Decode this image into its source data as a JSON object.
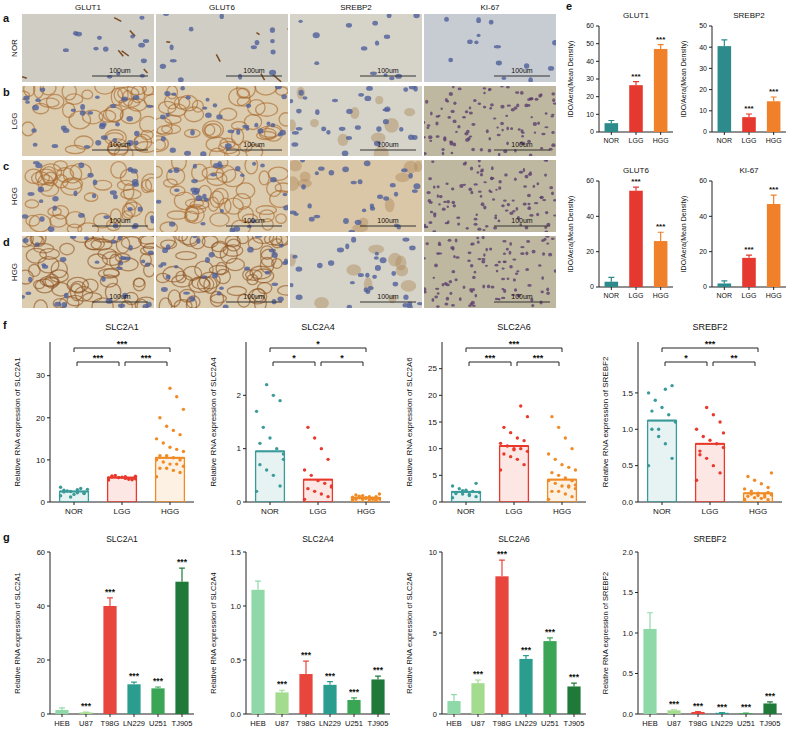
{
  "panel_labels": [
    "a",
    "b",
    "c",
    "d",
    "e",
    "f",
    "g"
  ],
  "image_grid": {
    "columns": [
      "GLUT1",
      "GLUT6",
      "SREBP2",
      "KI-67"
    ],
    "rows": [
      "NOR",
      "LGG",
      "HGG",
      "HGG"
    ],
    "scale_bar": "100um"
  },
  "chart_data": [
    {
      "type": "bar",
      "title": "GLUT1",
      "y_label": "IDO/Aera(Mean Density)",
      "categories": [
        "NOR",
        "LGG",
        "HGG"
      ],
      "values": [
        5,
        26.5,
        47
      ],
      "errors": [
        1.5,
        2,
        2.5
      ],
      "colors": [
        "#2e8b8b",
        "#e5392f",
        "#f0812a"
      ],
      "significance": [
        null,
        "***",
        "***"
      ],
      "ylim": [
        0,
        60
      ],
      "yticks": [
        0,
        10,
        20,
        30,
        40,
        50,
        60
      ]
    },
    {
      "type": "bar",
      "title": "SREBP2",
      "y_label": "IDO/Aera(Mean Density)",
      "categories": [
        "NOR",
        "LGG",
        "HGG"
      ],
      "values": [
        40.5,
        7,
        14.5
      ],
      "errors": [
        3,
        1.5,
        2
      ],
      "colors": [
        "#2e8b8b",
        "#e5392f",
        "#f0812a"
      ],
      "significance": [
        null,
        "***",
        "***"
      ],
      "ylim": [
        0,
        50
      ],
      "yticks": [
        0,
        10,
        20,
        30,
        40,
        50
      ]
    },
    {
      "type": "bar",
      "title": "GLUT6",
      "y_label": "IDO/Aera(Mean Density)",
      "categories": [
        "NOR",
        "LGG",
        "HGG"
      ],
      "values": [
        3,
        54.5,
        26
      ],
      "errors": [
        2.5,
        2,
        5
      ],
      "colors": [
        "#2e8b8b",
        "#e5392f",
        "#f0812a"
      ],
      "significance": [
        null,
        "***",
        "***"
      ],
      "ylim": [
        0,
        60
      ],
      "yticks": [
        0,
        20,
        40,
        60
      ]
    },
    {
      "type": "bar",
      "title": "KI-67",
      "y_label": "IDO/Aera(Mean Density)",
      "categories": [
        "NOR",
        "LGG",
        "HGG"
      ],
      "values": [
        2,
        16.5,
        47
      ],
      "errors": [
        1.5,
        1.5,
        5
      ],
      "colors": [
        "#2e8b8b",
        "#e5392f",
        "#f0812a"
      ],
      "significance": [
        null,
        "***",
        "***"
      ],
      "ylim": [
        0,
        60
      ],
      "yticks": [
        0,
        20,
        40,
        60
      ]
    },
    {
      "type": "bar",
      "title": "SLC2A1",
      "y_label": "Relative RNA expression of SLC2A1",
      "categories": [
        "NOR",
        "LGG",
        "HGG"
      ],
      "values": [
        2.5,
        5.8,
        10.5
      ],
      "points": [
        [
          1.5,
          2.0,
          2.2,
          2.5,
          2.8,
          3.0,
          3.2,
          1.8,
          2.6,
          3.5,
          2.1,
          2.9,
          1.2,
          2.4
        ],
        [
          5.2,
          5.5,
          5.6,
          5.8,
          6.0,
          6.1,
          5.4,
          5.9,
          6.3,
          5.7,
          5.3,
          6.0,
          5.8,
          6.2,
          5.5
        ],
        [
          6,
          7,
          7.5,
          8,
          8,
          8.5,
          9,
          9,
          9.5,
          10,
          10,
          10.5,
          11,
          11,
          12,
          12.5,
          13,
          14,
          15,
          16,
          17,
          18,
          20,
          22,
          25,
          27
        ]
      ],
      "colors": [
        "#3a9a9a",
        "#e8392c",
        "#f08a24"
      ],
      "comparisons": [
        {
          "pair": [
            0,
            1
          ],
          "label": "***"
        },
        {
          "pair": [
            1,
            2
          ],
          "label": "***"
        },
        {
          "pair": [
            0,
            2
          ],
          "label": "***"
        }
      ],
      "ylim": [
        0,
        38
      ],
      "yticks": [
        0,
        10,
        20,
        30
      ]
    },
    {
      "type": "bar",
      "title": "SLC2A4",
      "y_label": "Relative RNA expression of SLC2A4",
      "categories": [
        "NOR",
        "LGG",
        "HGG"
      ],
      "values": [
        0.95,
        0.42,
        0.08
      ],
      "points": [
        [
          0.2,
          0.3,
          0.5,
          0.6,
          0.7,
          0.8,
          1.0,
          1.2,
          1.4,
          1.7,
          1.9,
          2.0,
          2.2,
          1.1,
          0.9
        ],
        [
          0.05,
          0.1,
          0.15,
          0.2,
          0.25,
          0.3,
          0.35,
          0.4,
          0.5,
          0.6,
          0.8,
          1.0,
          1.2,
          1.4,
          0.28
        ],
        [
          0.02,
          0.03,
          0.04,
          0.05,
          0.05,
          0.06,
          0.07,
          0.08,
          0.08,
          0.09,
          0.1,
          0.1,
          0.12,
          0.13,
          0.15,
          0.05,
          0.07,
          0.11,
          0.06,
          0.04
        ]
      ],
      "colors": [
        "#3a9a9a",
        "#e8392c",
        "#f08a24"
      ],
      "comparisons": [
        {
          "pair": [
            0,
            1
          ],
          "label": "*"
        },
        {
          "pair": [
            1,
            2
          ],
          "label": "*"
        },
        {
          "pair": [
            0,
            2
          ],
          "label": "*"
        }
      ],
      "ylim": [
        0,
        3
      ],
      "yticks": [
        0,
        1,
        2
      ]
    },
    {
      "type": "bar",
      "title": "SLC2A6",
      "y_label": "Relative RNA expression of SLC2A6",
      "categories": [
        "NOR",
        "LGG",
        "HGG"
      ],
      "values": [
        1.9,
        10.5,
        4.2
      ],
      "points": [
        [
          0.8,
          1.0,
          1.2,
          1.5,
          1.6,
          1.8,
          2.0,
          2.2,
          2.5,
          3.0,
          3.5,
          1.4,
          2.1
        ],
        [
          6,
          7,
          8,
          8.5,
          9,
          9.5,
          10,
          10,
          10.5,
          11,
          11.5,
          12,
          13,
          14,
          16,
          18,
          9.8
        ],
        [
          0.5,
          1,
          1.5,
          2,
          2,
          2.5,
          3,
          3,
          3.5,
          4,
          4,
          4.5,
          5,
          5.5,
          6,
          6.5,
          7,
          8,
          9,
          10,
          12,
          14,
          16,
          3.2,
          2.8
        ]
      ],
      "colors": [
        "#3a9a9a",
        "#e8392c",
        "#f08a24"
      ],
      "comparisons": [
        {
          "pair": [
            0,
            1
          ],
          "label": "***"
        },
        {
          "pair": [
            1,
            2
          ],
          "label": "***"
        },
        {
          "pair": [
            0,
            2
          ],
          "label": "***"
        }
      ],
      "ylim": [
        0,
        30
      ],
      "yticks": [
        0,
        5,
        10,
        15,
        20,
        25
      ]
    },
    {
      "type": "bar",
      "title": "SREBF2",
      "y_label": "Relative RNA expression of SREBF2",
      "categories": [
        "NOR",
        "LGG",
        "HGG"
      ],
      "values": [
        1.12,
        0.8,
        0.12
      ],
      "points": [
        [
          0.5,
          0.6,
          0.8,
          0.9,
          1.0,
          1.1,
          1.2,
          1.3,
          1.4,
          1.5,
          1.6,
          1.55,
          1.0,
          1.25
        ],
        [
          0.3,
          0.4,
          0.5,
          0.6,
          0.7,
          0.75,
          0.8,
          0.85,
          0.9,
          1.0,
          1.1,
          1.2,
          1.3,
          0.65,
          0.95
        ],
        [
          0.02,
          0.03,
          0.05,
          0.06,
          0.08,
          0.1,
          0.1,
          0.12,
          0.15,
          0.18,
          0.2,
          0.25,
          0.3,
          0.35,
          0.4,
          0.07,
          0.09,
          0.11,
          0.04,
          0.13
        ]
      ],
      "colors": [
        "#3a9a9a",
        "#e8392c",
        "#f08a24"
      ],
      "comparisons": [
        {
          "pair": [
            0,
            1
          ],
          "label": "*"
        },
        {
          "pair": [
            1,
            2
          ],
          "label": "**"
        },
        {
          "pair": [
            0,
            2
          ],
          "label": "***"
        }
      ],
      "ylim": [
        0,
        2.2
      ],
      "yticks": [
        {
          "value": 0,
          "label": "0.0"
        },
        0.5,
        {
          "value": 1,
          "label": "1.0"
        },
        1.5
      ]
    },
    {
      "type": "bar",
      "title": "SLC2A1",
      "y_label": "Relative RNA expression of SLC2A1",
      "categories": [
        "HEB",
        "U87",
        "T98G",
        "LN229",
        "U251",
        "TJ905"
      ],
      "values": [
        1.5,
        0.6,
        40,
        11,
        9.5,
        49
      ],
      "errors": [
        0.8,
        0.1,
        3,
        0.8,
        0.5,
        5
      ],
      "colors": [
        "#8fd9a8",
        "#a3dc8f",
        "#e8453c",
        "#2a9d8f",
        "#3aa655",
        "#1f7a3a"
      ],
      "significance": [
        null,
        "***",
        "***",
        "***",
        "***",
        "***"
      ],
      "ylim": [
        0,
        60
      ],
      "yticks": [
        0,
        20,
        40,
        60
      ]
    },
    {
      "type": "bar",
      "title": "SLC2A4",
      "y_label": "Relative RNA expression of SLC2A4",
      "categories": [
        "HEB",
        "U87",
        "T98G",
        "LN229",
        "U251",
        "TJ905"
      ],
      "values": [
        1.15,
        0.2,
        0.37,
        0.27,
        0.13,
        0.32
      ],
      "errors": [
        0.08,
        0.02,
        0.12,
        0.03,
        0.02,
        0.03
      ],
      "colors": [
        "#8fd9a8",
        "#a3dc8f",
        "#e8453c",
        "#2a9d8f",
        "#3aa655",
        "#1f7a3a"
      ],
      "significance": [
        null,
        "***",
        "***",
        "***",
        "***",
        "***"
      ],
      "ylim": [
        0,
        1.5
      ],
      "yticks": [
        {
          "value": 0,
          "label": "0.0"
        },
        0.5,
        {
          "value": 1,
          "label": "1.0"
        },
        1.5
      ]
    },
    {
      "type": "bar",
      "title": "SLC2A6",
      "y_label": "Relative RNA expression of SLC2A6",
      "categories": [
        "HEB",
        "U87",
        "T98G",
        "LN229",
        "U251",
        "TJ905"
      ],
      "values": [
        0.8,
        1.9,
        8.5,
        3.4,
        4.5,
        1.7
      ],
      "errors": [
        0.4,
        0.2,
        1.0,
        0.2,
        0.2,
        0.2
      ],
      "colors": [
        "#8fd9a8",
        "#a3dc8f",
        "#e8453c",
        "#2a9d8f",
        "#3aa655",
        "#1f7a3a"
      ],
      "significance": [
        null,
        "***",
        "***",
        "***",
        "***",
        "***"
      ],
      "ylim": [
        0,
        10
      ],
      "yticks": [
        0,
        5,
        10
      ]
    },
    {
      "type": "bar",
      "title": "SREBF2",
      "y_label": "Relative RNA expression of SREBF2",
      "categories": [
        "HEB",
        "U87",
        "T98G",
        "LN229",
        "U251",
        "TJ905"
      ],
      "values": [
        1.05,
        0.045,
        0.025,
        0.015,
        0.01,
        0.13
      ],
      "errors": [
        0.2,
        0.005,
        0.005,
        0.003,
        0.002,
        0.02
      ],
      "colors": [
        "#8fd9a8",
        "#a3dc8f",
        "#e8453c",
        "#2a9d8f",
        "#3aa655",
        "#1f7a3a"
      ],
      "significance": [
        null,
        "***",
        "***",
        "***",
        "***",
        "***"
      ],
      "ylim": [
        0,
        2
      ],
      "yticks": [
        {
          "value": 0,
          "label": "0.0"
        },
        0.5,
        {
          "value": 1,
          "label": "1.0"
        },
        1.5,
        {
          "value": 2,
          "label": "2.0"
        }
      ]
    }
  ]
}
